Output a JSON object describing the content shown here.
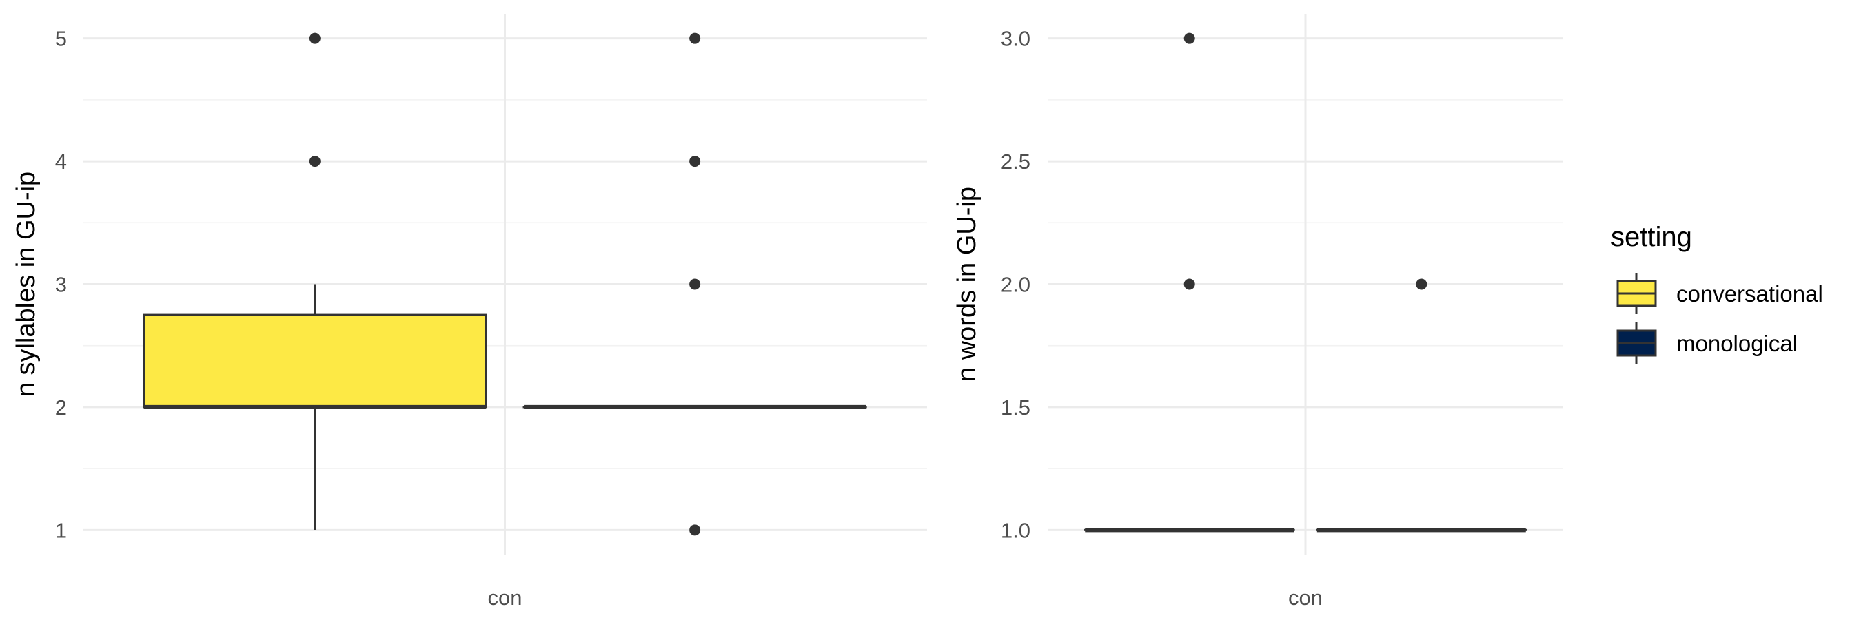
{
  "colors": {
    "conversational": "#FDE945",
    "monological": "#00204D",
    "outline": "#333333"
  },
  "legend": {
    "title": "setting",
    "items": [
      "conversational",
      "monological"
    ]
  },
  "chart_data": [
    {
      "type": "box",
      "title": "",
      "xlabel": "",
      "ylabel": "n syllables in GU-ip",
      "categories": [
        "con"
      ],
      "ylim": [
        0.8,
        5.2
      ],
      "yticks": [
        1,
        2,
        3,
        4,
        5
      ],
      "ytick_labels": [
        "1",
        "2",
        "3",
        "4",
        "5"
      ],
      "grid": true,
      "series": [
        {
          "name": "conversational",
          "q1": 2,
          "median": 2,
          "q3": 2.75,
          "whisker_low": 1,
          "whisker_high": 3,
          "outliers": [
            4,
            5
          ]
        },
        {
          "name": "monological",
          "q1": 2,
          "median": 2,
          "q3": 2,
          "whisker_low": 2,
          "whisker_high": 2,
          "outliers": [
            1,
            3,
            4,
            5
          ]
        }
      ]
    },
    {
      "type": "box",
      "title": "",
      "xlabel": "",
      "ylabel": "n words in GU-ip",
      "categories": [
        "con"
      ],
      "ylim": [
        0.9,
        3.1
      ],
      "yticks": [
        1.0,
        1.5,
        2.0,
        2.5,
        3.0
      ],
      "ytick_labels": [
        "1.0",
        "1.5",
        "2.0",
        "2.5",
        "3.0"
      ],
      "grid": true,
      "series": [
        {
          "name": "conversational",
          "q1": 1,
          "median": 1,
          "q3": 1,
          "whisker_low": 1,
          "whisker_high": 1,
          "outliers": [
            2,
            3
          ]
        },
        {
          "name": "monological",
          "q1": 1,
          "median": 1,
          "q3": 1,
          "whisker_low": 1,
          "whisker_high": 1,
          "outliers": [
            2
          ]
        }
      ]
    }
  ]
}
